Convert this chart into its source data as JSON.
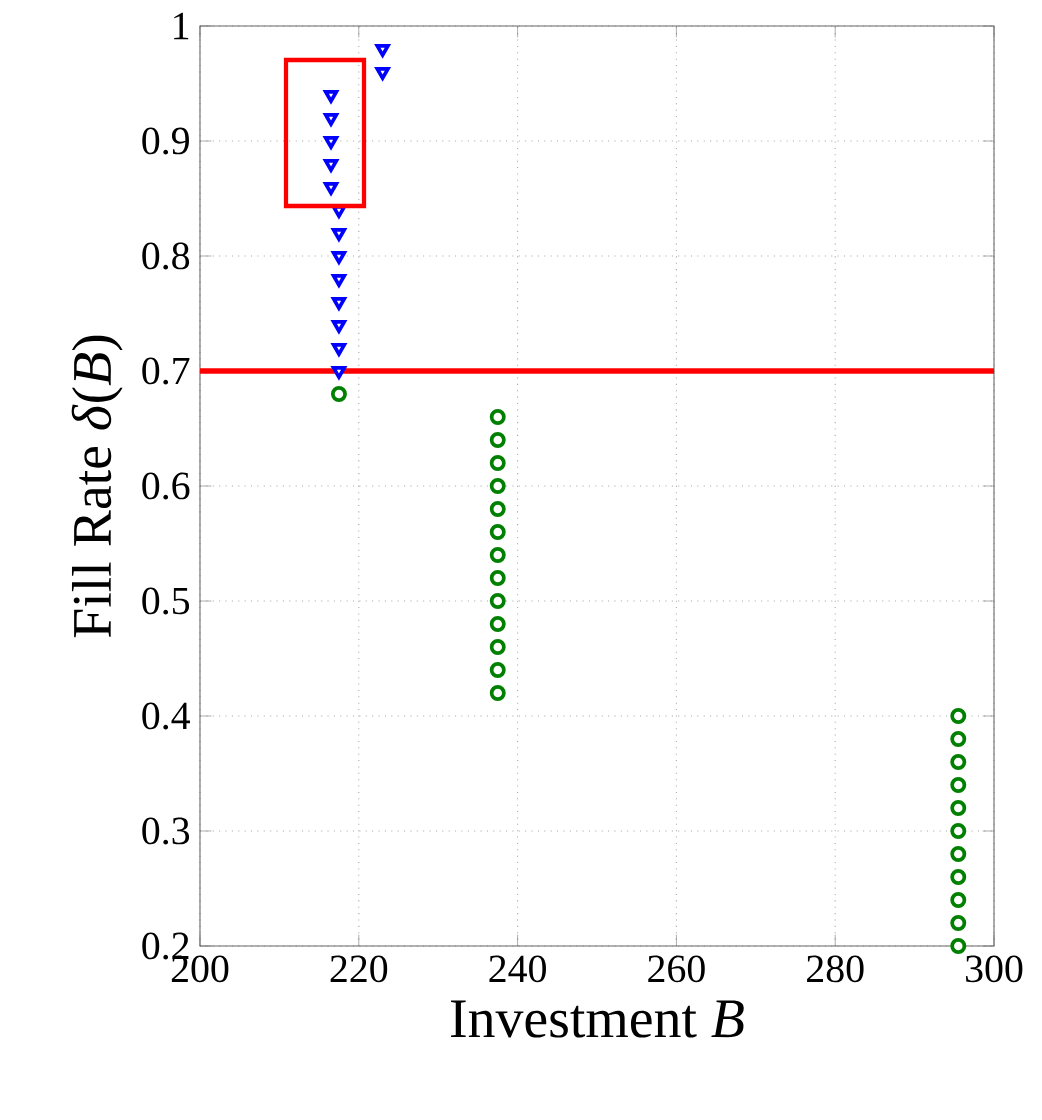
{
  "chart_data": {
    "type": "scatter",
    "xlabel": "Investment *B*",
    "ylabel": "Fill Rate *δ*(*B*)",
    "xlim": [
      200,
      300
    ],
    "xticks": [
      200,
      220,
      240,
      260,
      280,
      300
    ],
    "ylim": [
      0.2,
      1
    ],
    "yticks": [
      0.2,
      0.3,
      0.4,
      0.5,
      0.6,
      0.7,
      0.8,
      0.9,
      1
    ],
    "grid": true,
    "series": [
      {
        "color": "#0000ff",
        "marker": "triangle",
        "x": [
          223,
          223,
          216.5,
          216.5,
          216.5,
          216.5,
          216.5,
          217.5,
          217.5,
          217.5,
          217.5,
          217.5,
          217.5,
          217.5,
          217.5
        ],
        "values": [
          0.98,
          0.96,
          0.94,
          0.92,
          0.9,
          0.88,
          0.86,
          0.84,
          0.82,
          0.8,
          0.78,
          0.76,
          0.74,
          0.72,
          0.7
        ]
      },
      {
        "color": "#008000",
        "marker": "circle",
        "x": [
          217.5,
          237.5,
          237.5,
          237.5,
          237.5,
          237.5,
          237.5,
          237.5,
          237.5,
          237.5,
          237.5,
          237.5,
          237.5,
          237.5,
          295.5,
          295.5,
          295.5,
          295.5,
          295.5,
          295.5,
          295.5,
          295.5,
          295.5,
          295.5,
          295.5
        ],
        "values": [
          0.68,
          0.66,
          0.64,
          0.62,
          0.6,
          0.58,
          0.56,
          0.54,
          0.52,
          0.5,
          0.48,
          0.46,
          0.44,
          0.42,
          0.4,
          0.38,
          0.36,
          0.34,
          0.32,
          0.3,
          0.28,
          0.26,
          0.24,
          0.22,
          0.2
        ]
      }
    ],
    "ref_lines": [
      {
        "axis": "y",
        "value": 0.7,
        "color": "#ff0000"
      }
    ]
  }
}
